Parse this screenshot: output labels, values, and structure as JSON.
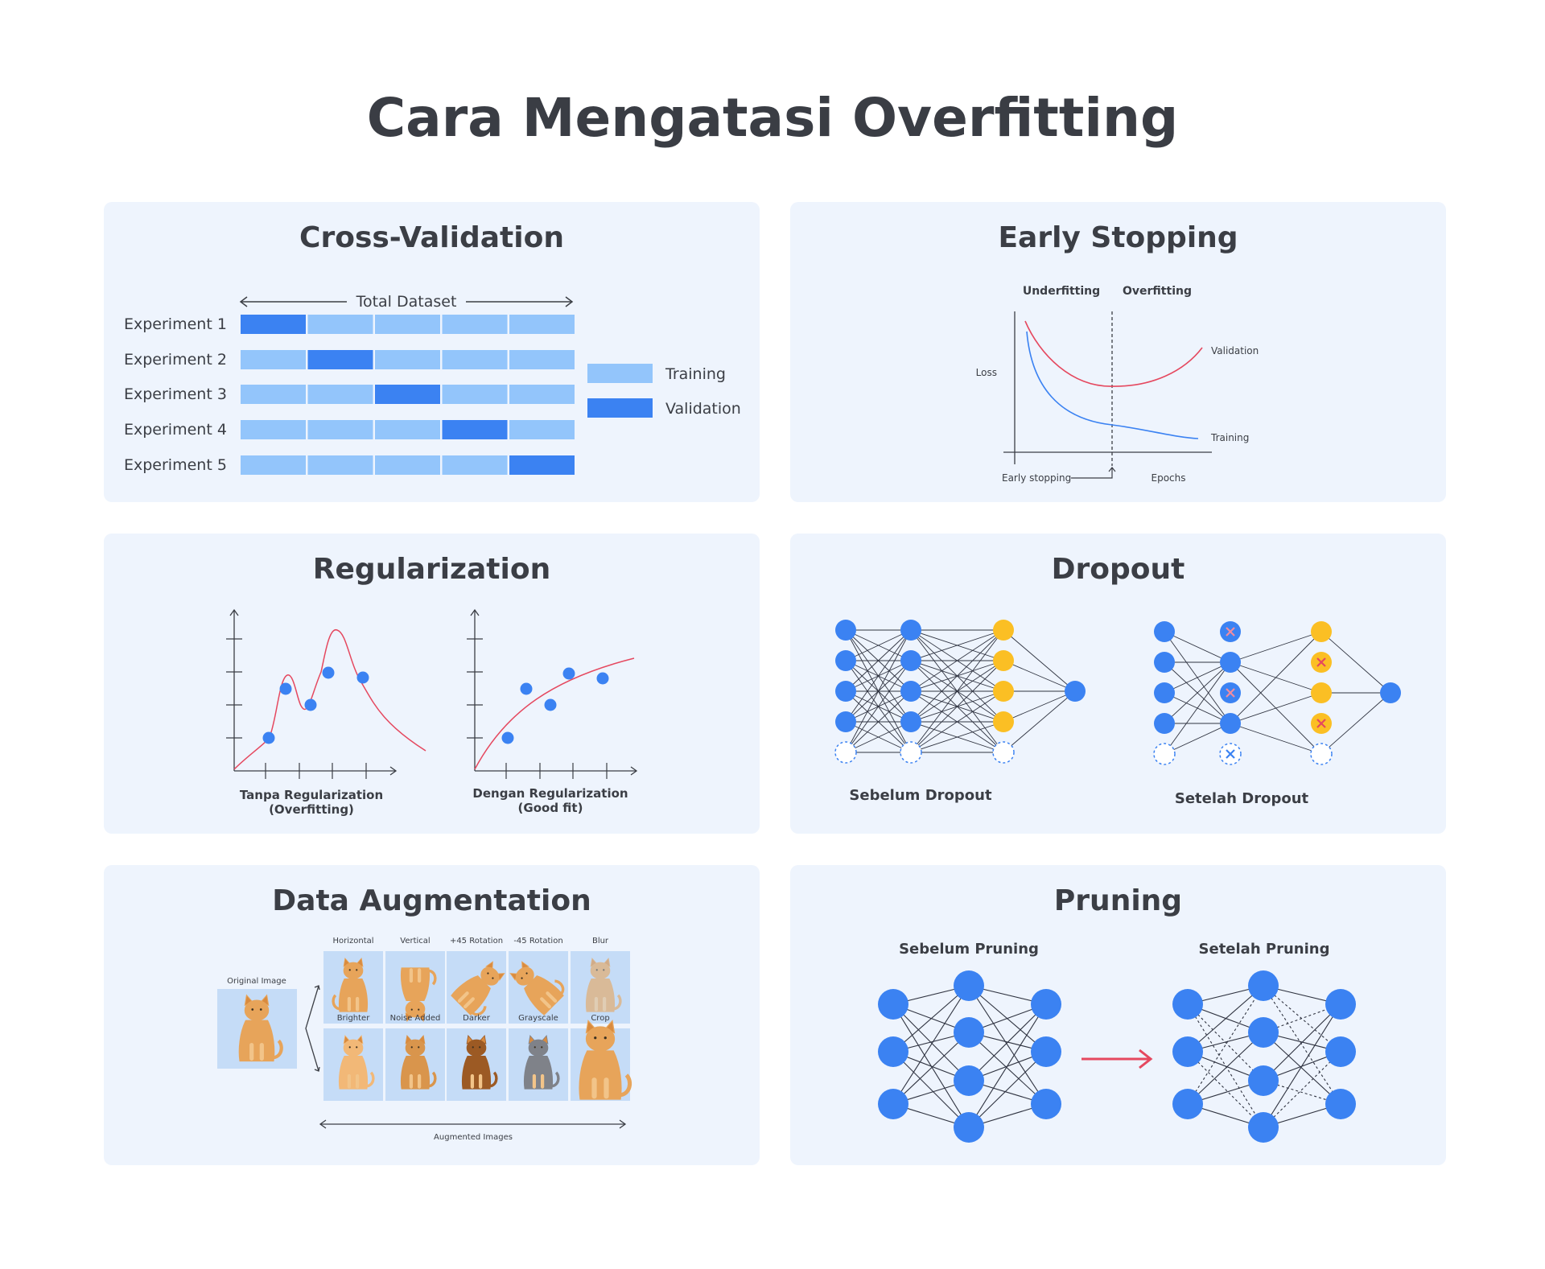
{
  "title": "Cara Mengatasi Overfitting",
  "colors": {
    "panel_bg": "#eef4fd",
    "training": "#93c5fb",
    "validation": "#3b82f2",
    "node_blue": "#3b82f2",
    "node_yellow": "#fbbf24",
    "curve_red": "#e5485f",
    "curve_blue": "#3b82f2",
    "arrow_red": "#e5485f",
    "cat_fur": "#e7a45a"
  },
  "cross_validation": {
    "title": "Cross-Validation",
    "dataset_label": "Total Dataset",
    "experiments": [
      {
        "label": "Experiment 1",
        "validation_fold": 1
      },
      {
        "label": "Experiment 2",
        "validation_fold": 2
      },
      {
        "label": "Experiment 3",
        "validation_fold": 3
      },
      {
        "label": "Experiment 4",
        "validation_fold": 4
      },
      {
        "label": "Experiment 5",
        "validation_fold": 5
      }
    ],
    "legend": {
      "training": "Training",
      "validation": "Validation"
    }
  },
  "early_stopping": {
    "title": "Early Stopping",
    "region_left": "Underfitting",
    "region_right": "Overfitting",
    "y_label": "Loss",
    "x_label": "Epochs",
    "series_validation": "Validation",
    "series_training": "Training",
    "marker_label": "Early stopping"
  },
  "regularization": {
    "title": "Regularization",
    "left_caption": [
      "Tanpa Regularization",
      "(Overfitting)"
    ],
    "right_caption": [
      "Dengan Regularization",
      "(Good fit)"
    ]
  },
  "dropout": {
    "title": "Dropout",
    "before_label": "Sebelum Dropout",
    "after_label": "Setelah Dropout"
  },
  "data_augmentation": {
    "title": "Data Augmentation",
    "original_label": "Original Image",
    "top_row": [
      "Horizontal",
      "Vertical",
      "+45 Rotation",
      "-45 Rotation",
      "Blur"
    ],
    "bottom_row": [
      "Brighter",
      "Noise Added",
      "Darker",
      "Grayscale",
      "Crop"
    ],
    "footer_label": "Augmented Images"
  },
  "pruning": {
    "title": "Pruning",
    "before_label": "Sebelum Pruning",
    "after_label": "Setelah Pruning"
  }
}
